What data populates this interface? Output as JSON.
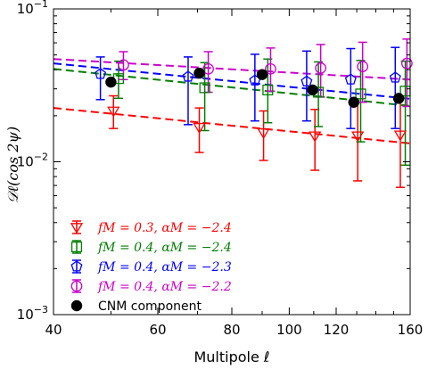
{
  "chart_data": {
    "type": "scatter",
    "xlabel": "Multipole ℓ",
    "ylabel": "𝒟ℓ(cos 2ψ)",
    "xscale": "log",
    "yscale": "log",
    "xlim": [
      40,
      160
    ],
    "ylim": [
      0.001,
      0.1
    ],
    "x_ticks": [
      40,
      60,
      80,
      100,
      120,
      160
    ],
    "x_tick_labels": [
      "40",
      "60",
      "80",
      "100",
      "120",
      "160"
    ],
    "y_ticks": [
      0.001,
      0.01,
      0.1
    ],
    "y_tick_labels": [
      "10−3",
      "10−2",
      "10−1"
    ],
    "legend_position": "lower-left",
    "series": [
      {
        "name": "fM = 0.3, αM = −2.4",
        "color": "#ff0000",
        "marker": "triangle-down",
        "x": [
          50.5,
          70.5,
          90.5,
          110.5,
          130.5,
          154
        ],
        "y": [
          0.0215,
          0.0168,
          0.0155,
          0.0148,
          0.0148,
          0.015
        ],
        "yerr_low": [
          0.0165,
          0.0115,
          0.0102,
          0.0088,
          0.0075,
          0.0068
        ],
        "yerr_high": [
          0.027,
          0.0225,
          0.0215,
          0.022,
          0.0245,
          0.027
        ],
        "trend_line": {
          "x": [
            40,
            160
          ],
          "y": [
            0.0225,
            0.0132
          ]
        }
      },
      {
        "name": "fM = 0.4, αM = −2.4",
        "color": "#008000",
        "marker": "square",
        "x": [
          51.5,
          72,
          92,
          112,
          132,
          157
        ],
        "y": [
          0.035,
          0.0305,
          0.0295,
          0.0285,
          0.0278,
          0.029
        ],
        "yerr_low": [
          0.026,
          0.016,
          0.018,
          0.017,
          0.0135,
          0.0095
        ],
        "yerr_high": [
          0.0455,
          0.0445,
          0.047,
          0.045,
          0.046,
          0.0455
        ],
        "trend_line": {
          "x": [
            40,
            160
          ],
          "y": [
            0.0405,
            0.0232
          ]
        }
      },
      {
        "name": "fM = 0.4, αM = −2.3",
        "color": "#0000ff",
        "marker": "pentagon",
        "x": [
          48,
          67.5,
          87.5,
          107,
          127,
          151
        ],
        "y": [
          0.0375,
          0.036,
          0.034,
          0.0335,
          0.0345,
          0.0355
        ],
        "yerr_low": [
          0.0255,
          0.0175,
          0.0185,
          0.0185,
          0.0165,
          0.0165
        ],
        "yerr_high": [
          0.0485,
          0.0485,
          0.0505,
          0.053,
          0.055,
          0.056
        ],
        "trend_line": {
          "x": [
            40,
            160
          ],
          "y": [
            0.044,
            0.0258
          ]
        }
      },
      {
        "name": "fM = 0.4, αM = −2.2",
        "color": "#cc00cc",
        "marker": "circle-open",
        "x": [
          52.5,
          73,
          93,
          113,
          133,
          158
        ],
        "y": [
          0.043,
          0.0405,
          0.0405,
          0.041,
          0.042,
          0.044
        ],
        "yerr_low": [
          0.0345,
          0.0285,
          0.029,
          0.0265,
          0.0245,
          0.023
        ],
        "yerr_high": [
          0.0525,
          0.0525,
          0.0555,
          0.0585,
          0.0605,
          0.0635
        ],
        "trend_line": {
          "x": [
            40,
            160
          ],
          "y": [
            0.047,
            0.0345
          ]
        }
      },
      {
        "name": "CNM component",
        "color": "#000000",
        "marker": "circle-filled",
        "x": [
          50,
          70.5,
          90,
          109.5,
          128.5,
          153
        ],
        "y": [
          0.0332,
          0.038,
          0.0372,
          0.0295,
          0.0245,
          0.026
        ]
      }
    ]
  }
}
